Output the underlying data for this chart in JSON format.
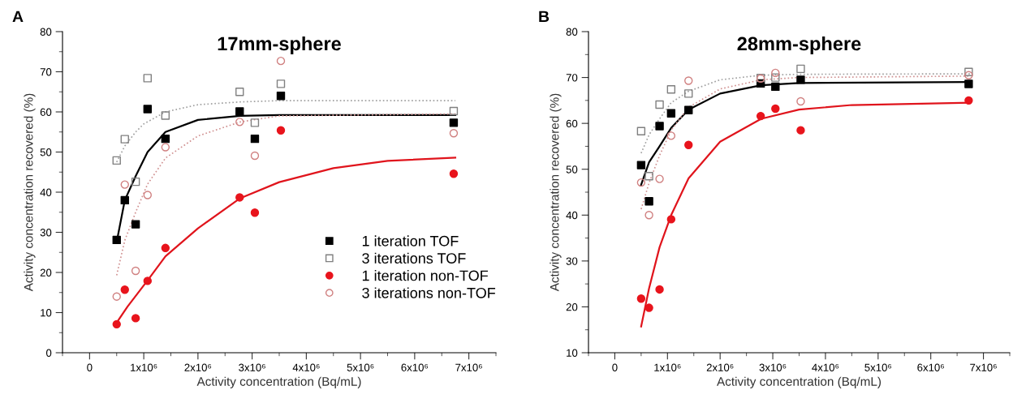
{
  "chart_data": [
    {
      "type": "scatter",
      "title": "17mm-sphere",
      "xlabel": "Activity concentration (Bq/mL)",
      "ylabel": "Activity concentration recovered (%)",
      "annotations": [
        "A"
      ],
      "xlim": [
        -500000,
        7500000
      ],
      "ylim": [
        0,
        80
      ],
      "xticks": [
        {
          "value": 0,
          "label": "0"
        },
        {
          "value": 1000000,
          "label": "1x10⁶"
        },
        {
          "value": 2000000,
          "label": "2x10⁶"
        },
        {
          "value": 3000000,
          "label": "3x10⁶"
        },
        {
          "value": 4000000,
          "label": "4x10⁶"
        },
        {
          "value": 5000000,
          "label": "5x10⁶"
        },
        {
          "value": 6000000,
          "label": "6x10⁶"
        },
        {
          "value": 7000000,
          "label": "7x10⁶"
        },
        {
          "value": -500000,
          "label": null
        },
        {
          "value": 500000,
          "label": null
        },
        {
          "value": 1500000,
          "label": null
        },
        {
          "value": 2500000,
          "label": null
        },
        {
          "value": 3500000,
          "label": null
        },
        {
          "value": 4500000,
          "label": null
        },
        {
          "value": 5500000,
          "label": null
        },
        {
          "value": 6500000,
          "label": null
        },
        {
          "value": 7500000,
          "label": null
        }
      ],
      "yticks": [
        0,
        10,
        20,
        30,
        40,
        50,
        60,
        70,
        80,
        {
          "value": 5,
          "label": null
        },
        {
          "value": 15,
          "label": null
        },
        {
          "value": 25,
          "label": null
        },
        {
          "value": 35,
          "label": null
        },
        {
          "value": 45,
          "label": null
        },
        {
          "value": 55,
          "label": null
        },
        {
          "value": 65,
          "label": null
        },
        {
          "value": 75,
          "label": null
        }
      ],
      "grid": false,
      "legend": "lower right",
      "x": [
        500000,
        650000,
        850000,
        1070000,
        1400000,
        2770000,
        3050000,
        3530000,
        6720000
      ],
      "series": [
        {
          "name": "1 iteration TOF",
          "marker": "square",
          "color": "#000000",
          "values": [
            28.1,
            38.0,
            32.0,
            60.7,
            53.3,
            60.1,
            53.3,
            64.0,
            57.3
          ]
        },
        {
          "name": "3 iterations TOF",
          "marker": "square",
          "color": "#808080",
          "values": [
            47.9,
            53.2,
            42.6,
            68.4,
            59.1,
            65.0,
            57.3,
            67.0,
            60.2
          ]
        },
        {
          "name": "1 iteration non-TOF",
          "marker": "circle",
          "color": "#e8141c",
          "values": [
            7.1,
            15.7,
            8.6,
            17.9,
            26.1,
            38.7,
            34.9,
            55.4,
            44.6
          ]
        },
        {
          "name": "3 iterations non-TOF",
          "marker": "circle",
          "color": "#d08080",
          "values": [
            14.0,
            41.9,
            20.4,
            39.3,
            51.2,
            57.5,
            49.1,
            72.7,
            54.7
          ]
        },
        {
          "type": "line",
          "line_style": "solid",
          "color": "#000000",
          "x": [
            500000,
            650000,
            850000,
            1070000,
            1400000,
            2000000,
            2780000,
            3500000,
            6750000
          ],
          "values": [
            27.6,
            38.0,
            44.0,
            50.0,
            55.0,
            58.0,
            59.0,
            59.2,
            59.2
          ]
        },
        {
          "type": "line",
          "line_style": "dotted",
          "color": "#a0a0a0",
          "x": [
            500000,
            650000,
            850000,
            1000000,
            1400000,
            2000000,
            2800000,
            3500000,
            6750000
          ],
          "values": [
            47.5,
            51.5,
            55.0,
            57.0,
            60.0,
            61.8,
            62.5,
            62.8,
            62.8
          ]
        },
        {
          "type": "line",
          "line_style": "dotted",
          "color": "#d09090",
          "x": [
            500000,
            650000,
            850000,
            1070000,
            1400000,
            2000000,
            2780000,
            3500000,
            6750000
          ],
          "values": [
            19.3,
            28.0,
            35.0,
            42.0,
            48.5,
            54.0,
            57.5,
            59.0,
            59.5
          ]
        },
        {
          "type": "line",
          "line_style": "solid",
          "color": "#e0141c",
          "x": [
            500000,
            700000,
            1070000,
            1400000,
            2000000,
            2780000,
            3500000,
            4500000,
            5500000,
            6750000
          ],
          "values": [
            7.5,
            11.5,
            18.0,
            24.0,
            31.0,
            38.5,
            42.5,
            46.0,
            47.8,
            48.6
          ]
        }
      ]
    },
    {
      "type": "scatter",
      "title": "28mm-sphere",
      "xlabel": "Activity concentration (Bq/mL)",
      "ylabel": "Activity concentration recovered (%)",
      "annotations": [
        "B"
      ],
      "xlim": [
        -500000,
        7500000
      ],
      "ylim": [
        10,
        80
      ],
      "xticks": [
        {
          "value": 0,
          "label": "0"
        },
        {
          "value": 1000000,
          "label": "1x10⁶"
        },
        {
          "value": 2000000,
          "label": "2x10⁶"
        },
        {
          "value": 3000000,
          "label": "3x10⁶"
        },
        {
          "value": 4000000,
          "label": "4x10⁶"
        },
        {
          "value": 5000000,
          "label": "5x10⁶"
        },
        {
          "value": 6000000,
          "label": "6x10⁶"
        },
        {
          "value": 7000000,
          "label": "7x10⁶"
        },
        {
          "value": -500000,
          "label": null
        },
        {
          "value": 500000,
          "label": null
        },
        {
          "value": 1500000,
          "label": null
        },
        {
          "value": 2500000,
          "label": null
        },
        {
          "value": 3500000,
          "label": null
        },
        {
          "value": 4500000,
          "label": null
        },
        {
          "value": 5500000,
          "label": null
        },
        {
          "value": 6500000,
          "label": null
        },
        {
          "value": 7500000,
          "label": null
        }
      ],
      "yticks": [
        10,
        20,
        30,
        40,
        50,
        60,
        70,
        80,
        {
          "value": 15,
          "label": null
        },
        {
          "value": 25,
          "label": null
        },
        {
          "value": 35,
          "label": null
        },
        {
          "value": 45,
          "label": null
        },
        {
          "value": 55,
          "label": null
        },
        {
          "value": 65,
          "label": null
        },
        {
          "value": 75,
          "label": null
        }
      ],
      "grid": false,
      "x": [
        500000,
        650000,
        850000,
        1070000,
        1400000,
        2770000,
        3050000,
        3530000,
        6720000
      ],
      "series": [
        {
          "marker": "square",
          "color": "#000000",
          "values": [
            50.9,
            43.0,
            59.4,
            62.2,
            62.9,
            68.7,
            68.0,
            69.5,
            68.6
          ]
        },
        {
          "marker": "square",
          "color": "#808080",
          "values": [
            58.3,
            48.5,
            64.1,
            67.4,
            66.5,
            69.9,
            70.0,
            71.9,
            71.2
          ]
        },
        {
          "marker": "circle",
          "color": "#e8141c",
          "values": [
            21.8,
            19.8,
            23.8,
            39.1,
            55.3,
            61.6,
            63.2,
            58.5,
            65.0
          ]
        },
        {
          "marker": "circle",
          "color": "#d08080",
          "values": [
            47.1,
            40.0,
            47.9,
            57.3,
            69.3,
            69.8,
            71.0,
            64.8,
            70.5
          ]
        },
        {
          "type": "line",
          "line_style": "solid",
          "color": "#000000",
          "x": [
            500000,
            650000,
            850000,
            1070000,
            1400000,
            2000000,
            2780000,
            3500000,
            6750000
          ],
          "values": [
            46.6,
            51.5,
            55.0,
            59.0,
            63.0,
            66.5,
            68.3,
            68.8,
            69.0
          ]
        },
        {
          "type": "line",
          "line_style": "dotted",
          "color": "#a0a0a0",
          "x": [
            500000,
            650000,
            850000,
            1070000,
            1400000,
            2000000,
            2780000,
            3500000,
            6750000
          ],
          "values": [
            53.5,
            57.5,
            61.0,
            64.5,
            67.0,
            69.5,
            70.5,
            70.7,
            70.8
          ]
        },
        {
          "type": "line",
          "line_style": "dotted",
          "color": "#d09090",
          "x": [
            500000,
            650000,
            850000,
            1070000,
            1400000,
            2000000,
            2780000,
            3500000,
            6750000
          ],
          "values": [
            41.3,
            47.0,
            53.0,
            58.5,
            63.5,
            67.5,
            69.5,
            70.0,
            70.3
          ]
        },
        {
          "type": "line",
          "line_style": "solid",
          "color": "#e0141c",
          "x": [
            500000,
            650000,
            850000,
            1070000,
            1400000,
            2000000,
            2780000,
            3500000,
            4500000,
            6750000
          ],
          "values": [
            15.7,
            24.0,
            33.0,
            40.0,
            48.0,
            56.0,
            61.0,
            63.0,
            64.0,
            64.5
          ]
        }
      ]
    }
  ]
}
